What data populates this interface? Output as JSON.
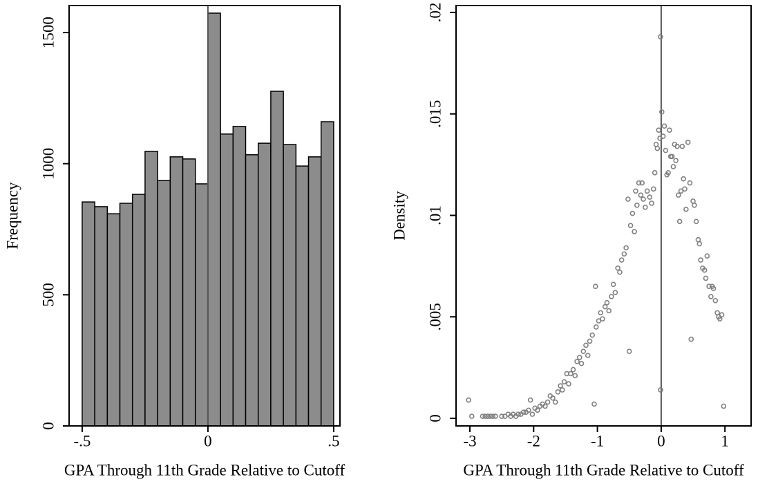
{
  "chart_data": [
    {
      "type": "histogram",
      "x_label": "GPA Through 11th Grade Relative to Cutoff",
      "y_label": "Frequency",
      "bins": [
        -0.5,
        -0.45,
        -0.4,
        -0.35,
        -0.3,
        -0.25,
        -0.2,
        -0.15,
        -0.1,
        -0.05,
        0,
        0.05,
        0.1,
        0.15,
        0.2,
        0.25,
        0.3,
        0.35,
        0.4,
        0.45,
        0.5
      ],
      "values": [
        854,
        836,
        809,
        849,
        883,
        1047,
        936,
        1026,
        1018,
        923,
        1574,
        1113,
        1142,
        1034,
        1078,
        1276,
        1073,
        991,
        1026,
        1160
      ],
      "color": "#8c8c8c",
      "xlim": [
        -0.552,
        0.525
      ],
      "ylim": [
        0,
        1603
      ],
      "xticks": [
        {
          "value": -0.5,
          "label": "-.5"
        },
        0,
        {
          "value": 0.5,
          "label": ".5"
        }
      ],
      "yticks": [
        0,
        500,
        1000,
        1500
      ],
      "xline": 0
    },
    {
      "type": "scatter",
      "x_label": "GPA Through 11th Grade Relative to Cutoff",
      "y_label": "Density",
      "x": [
        -3.02,
        -2.97,
        -2.8,
        -2.76,
        -2.72,
        -2.68,
        -2.64,
        -2.6,
        -2.5,
        -2.45,
        -2.4,
        -2.36,
        -2.32,
        -2.28,
        -2.24,
        -2.2,
        -2.16,
        -2.12,
        -2.08,
        -2.05,
        -2.02,
        -1.98,
        -1.94,
        -1.9,
        -1.86,
        -1.82,
        -1.78,
        -1.74,
        -1.7,
        -1.66,
        -1.62,
        -1.58,
        -1.55,
        -1.52,
        -1.48,
        -1.45,
        -1.42,
        -1.38,
        -1.35,
        -1.32,
        -1.28,
        -1.25,
        -1.22,
        -1.18,
        -1.15,
        -1.12,
        -1.08,
        -1.05,
        -1.03,
        -1.02,
        -0.98,
        -0.95,
        -0.92,
        -0.88,
        -0.85,
        -0.82,
        -0.78,
        -0.75,
        -0.72,
        -0.68,
        -0.65,
        -0.62,
        -0.58,
        -0.55,
        -0.52,
        -0.5,
        -0.48,
        -0.45,
        -0.42,
        -0.4,
        -0.38,
        -0.35,
        -0.32,
        -0.3,
        -0.28,
        -0.25,
        -0.22,
        -0.18,
        -0.15,
        -0.12,
        -0.1,
        -0.08,
        -0.06,
        -0.04,
        -0.02,
        -0.01,
        -0.01,
        0.01,
        0.03,
        0.05,
        0.07,
        0.09,
        0.11,
        0.13,
        0.15,
        0.17,
        0.19,
        0.21,
        0.23,
        0.25,
        0.27,
        0.29,
        0.31,
        0.33,
        0.35,
        0.37,
        0.39,
        0.42,
        0.45,
        0.47,
        0.5,
        0.52,
        0.55,
        0.58,
        0.6,
        0.62,
        0.65,
        0.68,
        0.7,
        0.72,
        0.75,
        0.78,
        0.8,
        0.82,
        0.85,
        0.88,
        0.9,
        0.92,
        0.95,
        0.98
      ],
      "values": [
        0.0009,
        0.0001,
        0.0001,
        0.0001,
        0.0001,
        0.0001,
        0.0001,
        0.0001,
        0.0001,
        0.0001,
        0.0002,
        0.0001,
        0.0002,
        0.0001,
        0.0002,
        0.0002,
        0.0003,
        0.0003,
        0.0004,
        0.0009,
        0.0002,
        0.0005,
        0.0004,
        0.0006,
        0.0007,
        0.0006,
        0.0008,
        0.0011,
        0.001,
        0.0008,
        0.0013,
        0.0016,
        0.0014,
        0.0018,
        0.0022,
        0.0017,
        0.0022,
        0.0024,
        0.0021,
        0.0028,
        0.003,
        0.0027,
        0.0033,
        0.0036,
        0.0031,
        0.0038,
        0.0041,
        0.0007,
        0.0065,
        0.0045,
        0.0048,
        0.0052,
        0.0049,
        0.0055,
        0.0057,
        0.0053,
        0.006,
        0.0066,
        0.0062,
        0.0074,
        0.0072,
        0.0078,
        0.0081,
        0.0084,
        0.0108,
        0.0033,
        0.0095,
        0.0101,
        0.0092,
        0.0112,
        0.0105,
        0.0116,
        0.011,
        0.0116,
        0.0108,
        0.0104,
        0.0112,
        0.0109,
        0.0106,
        0.0113,
        0.0121,
        0.0135,
        0.0133,
        0.0142,
        0.0138,
        0.0188,
        0.0014,
        0.0151,
        0.0139,
        0.0144,
        0.0132,
        0.012,
        0.0121,
        0.0142,
        0.0129,
        0.0129,
        0.0124,
        0.0135,
        0.0127,
        0.0134,
        0.011,
        0.0097,
        0.0112,
        0.0134,
        0.0118,
        0.0113,
        0.0103,
        0.0136,
        0.0116,
        0.0039,
        0.0107,
        0.0105,
        0.0097,
        0.0088,
        0.0086,
        0.0078,
        0.0074,
        0.0073,
        0.0069,
        0.008,
        0.0065,
        0.006,
        0.0065,
        0.0064,
        0.0058,
        0.0052,
        0.005,
        0.0049,
        0.0051,
        0.0006
      ],
      "color": "#808080",
      "xlim": [
        -3.217,
        1.41
      ],
      "ylim": [
        -0.000375,
        0.02034
      ],
      "xticks": [
        -3,
        -2,
        -1,
        0,
        1
      ],
      "yticks": [
        0,
        {
          "value": 0.005,
          "label": ".005"
        },
        {
          "value": 0.01,
          "label": ".01"
        },
        {
          "value": 0.015,
          "label": ".015"
        },
        {
          "value": 0.02,
          "label": ".02"
        }
      ],
      "xline": 0
    }
  ]
}
